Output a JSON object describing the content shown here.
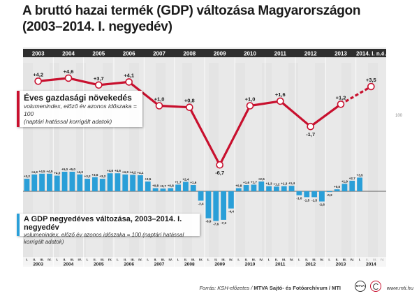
{
  "title_line1": "A bruttó hazai termék (GDP) változása Magyarországon",
  "title_line2": "(2003–2014. I. negyedév)",
  "annual_box": {
    "heading": "Éves gazdasági növekedés",
    "sub1": "volumenindex, előző év azonos időszaka = 100",
    "sub2": "(naptári hatással korrigált adatok)"
  },
  "quarterly_box": {
    "heading": "A GDP negyedéves változása, 2003–2014. I. negyedév",
    "sub": "volumenindex, előző év azonos időszaka = 100 (naptári hatással korrigált adatok)"
  },
  "ref_label": "100",
  "footer": {
    "source_prefix": "Forrás: KSH-előzetes / ",
    "source_agency": "MTVA Sajtó- és Fotóarchívum / MTI",
    "website": "www.mti.hu",
    "logo_text": "MTVA"
  },
  "colors": {
    "red": "#c8102e",
    "blue": "#2a9fd8",
    "header": "#2e2e2e",
    "bg": "#e9e9e9"
  },
  "chart_data": [
    {
      "type": "line",
      "name": "Éves gazdasági növekedés",
      "categories": [
        "2003",
        "2004",
        "2005",
        "2006",
        "2007",
        "2008",
        "2009",
        "2010",
        "2011",
        "2012",
        "2013",
        "2014. I. n.é."
      ],
      "values": [
        4.2,
        4.6,
        3.7,
        4.1,
        1.0,
        0.8,
        -6.7,
        1.0,
        1.6,
        -1.7,
        1.2,
        3.5
      ],
      "labels": [
        "+4,2",
        "+4,6",
        "+3,7",
        "+4,1",
        "+1,0",
        "+0,8",
        "-6,7",
        "+1,0",
        "+1,6",
        "-1,7",
        "+1,2",
        "+3,5"
      ],
      "last_segment_dashed": true
    },
    {
      "type": "bar",
      "name": "A GDP negyedéves változása",
      "years": [
        "2003",
        "2004",
        "2005",
        "2006",
        "2007",
        "2008",
        "2009",
        "2010",
        "2011",
        "2012",
        "2013",
        "2014"
      ],
      "quarter_labels": [
        "I.",
        "II.",
        "III.",
        "IV."
      ],
      "values": [
        3.2,
        4.3,
        4.5,
        4.5,
        4.0,
        5.0,
        5.0,
        4.3,
        3.2,
        3.6,
        3.2,
        4.6,
        4.6,
        4.3,
        4.2,
        4.1,
        2.5,
        0.8,
        0.7,
        0.8,
        1.7,
        2.4,
        1.6,
        -2.4,
        -6.9,
        -7.6,
        -7.3,
        -4.4,
        0.8,
        1.6,
        1.7,
        2.5,
        1.3,
        1.2,
        1.3,
        1.4,
        -1.0,
        -1.5,
        -1.5,
        -2.6,
        -0.2,
        0.5,
        1.9,
        2.7,
        3.5
      ],
      "value_labels": [
        "+3,2",
        "+4,3",
        "+4,5",
        "+4,5",
        "+4,0",
        "+5,0",
        "+5,0",
        "+4,3",
        "+3,2",
        "+3,6",
        "+3,2",
        "+4,6",
        "+4,6",
        "+4,3",
        "+4,2",
        "+4,1",
        "+2,5",
        "+0,8",
        "+0,7",
        "+0,8",
        "+1,7",
        "+2,4",
        "+1,6",
        "-2,4",
        "-6,9",
        "-7,6",
        "-7,3",
        "-4,4",
        "+0,8",
        "+1,6",
        "+1,7",
        "+2,5",
        "+1,3",
        "+1,2",
        "+1,3",
        "+1,4",
        "-1,0",
        "-1,5",
        "-1,5",
        "-2,6",
        "-0,2",
        "+0,5",
        "+1,9",
        "+2,7",
        "+3,5"
      ]
    }
  ]
}
